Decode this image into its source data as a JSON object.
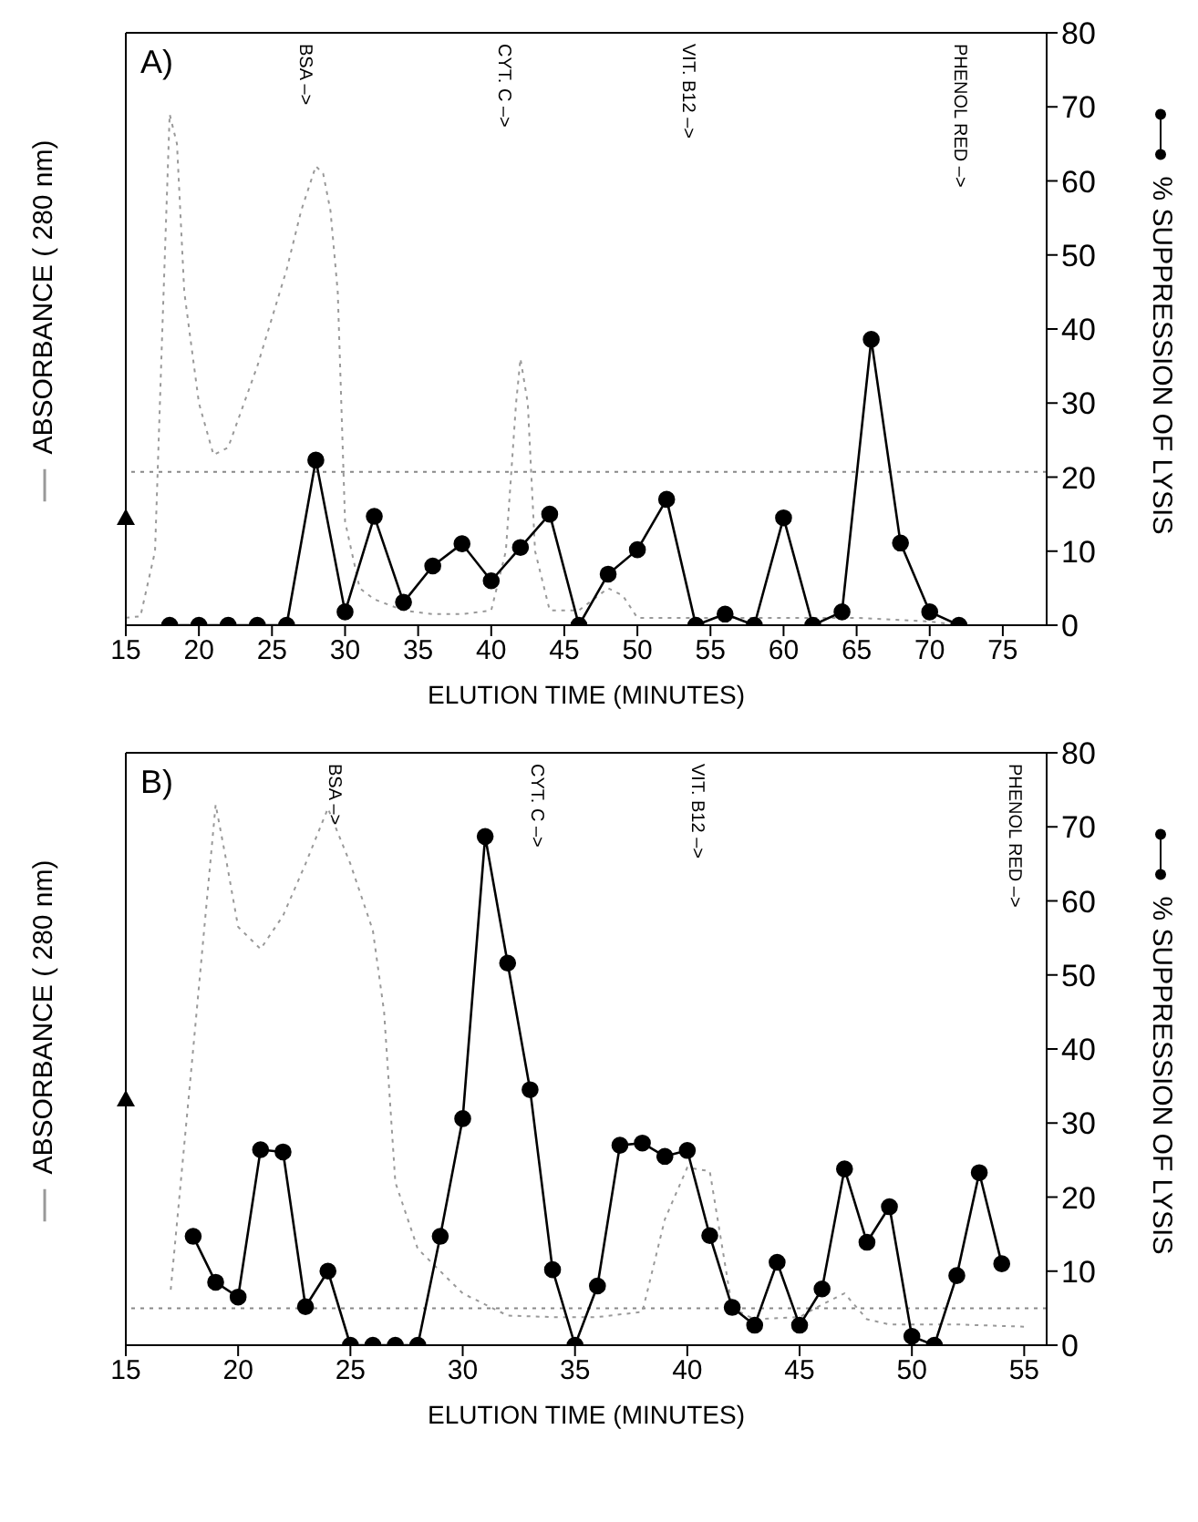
{
  "chart_data": [
    {
      "type": "line",
      "title": "A)",
      "xlabel": "ELUTION TIME (MINUTES)",
      "ylabel": "% SUPPRESSION OF LYSIS",
      "xlim": [
        15,
        78
      ],
      "xticks": [
        15,
        20,
        25,
        30,
        35,
        40,
        45,
        50,
        55,
        60,
        65,
        70,
        75
      ],
      "ylim": [
        0,
        80
      ],
      "yticks": [
        0,
        10,
        20,
        30,
        40,
        50,
        60,
        70,
        80
      ],
      "annotations": [
        "BSA –>",
        "CYT. C –>",
        "VIT. B12 –>",
        "PHENOL RED –>",
        "ABSORBANCE (  280 nm)"
      ],
      "ref_lines": [
        {
          "axis": "y",
          "value": 20.7,
          "color": "#888888",
          "line_style": "dotted"
        }
      ],
      "series": [
        {
          "type": "line",
          "color": "#999999",
          "marker": "none",
          "line_style": "dotted",
          "x": [
            15,
            16,
            17,
            17.5,
            18,
            18.5,
            19,
            20,
            21,
            22,
            24,
            26,
            27,
            28,
            28.5,
            29,
            29.5,
            30,
            31,
            32,
            34,
            36,
            38,
            40,
            41,
            41.7,
            42,
            42.5,
            43,
            44,
            46,
            48,
            49,
            50,
            55,
            60,
            65,
            70,
            72
          ],
          "values": [
            1,
            1.2,
            10,
            40,
            69,
            65,
            45,
            30,
            23,
            24,
            35,
            48,
            56,
            62,
            61,
            56,
            45,
            14,
            5,
            3.5,
            2,
            1.5,
            1.5,
            2,
            10,
            30,
            36,
            30,
            10,
            2,
            2,
            5,
            4,
            1,
            1,
            1,
            1,
            0.5,
            0
          ]
        },
        {
          "type": "line",
          "color": "#000000",
          "marker": "circle",
          "line_style": "solid",
          "x": [
            18,
            20,
            22,
            24,
            26,
            28,
            30,
            32,
            34,
            36,
            38,
            40,
            42,
            44,
            46,
            48,
            50,
            52,
            54,
            56,
            58,
            60,
            62,
            64,
            66,
            68,
            70,
            72
          ],
          "values": [
            0,
            0,
            0,
            0,
            0,
            22.3,
            1.8,
            14.7,
            3.1,
            8,
            11,
            6,
            10.5,
            15,
            0,
            6.9,
            10.2,
            17,
            0,
            1.5,
            0,
            14.5,
            0,
            1.8,
            38.6,
            11.1,
            1.8,
            0
          ]
        }
      ]
    },
    {
      "type": "line",
      "title": "B)",
      "xlabel": "ELUTION TIME (MINUTES)",
      "ylabel": "% SUPPRESSION OF LYSIS",
      "xlim": [
        15,
        56
      ],
      "xticks": [
        15,
        20,
        25,
        30,
        35,
        40,
        45,
        50,
        55
      ],
      "ylim": [
        0,
        80
      ],
      "yticks": [
        0,
        10,
        20,
        30,
        40,
        50,
        60,
        70,
        80
      ],
      "annotations": [
        "BSA –>",
        "CYT. C –>",
        "VIT. B12 –>",
        "PHENOL RED –>",
        "ABSORBANCE (  280 nm)"
      ],
      "ref_lines": [
        {
          "axis": "y",
          "value": 5,
          "color": "#888888",
          "line_style": "dotted"
        }
      ],
      "series": [
        {
          "type": "line",
          "color": "#999999",
          "marker": "none",
          "line_style": "dotted",
          "x": [
            17,
            18,
            19,
            19.5,
            20,
            21,
            22,
            23,
            24,
            25,
            26,
            26.5,
            27,
            28,
            29,
            30,
            31,
            32,
            34,
            36,
            38,
            39,
            40,
            41,
            42,
            43,
            45,
            46,
            47,
            48,
            49,
            50,
            52,
            55
          ],
          "values": [
            7.5,
            40,
            73,
            65,
            56.5,
            53.5,
            58,
            65,
            72.5,
            65,
            56,
            45,
            22,
            13,
            10,
            7,
            5.5,
            4,
            3.8,
            3.8,
            4.5,
            17,
            24,
            23.5,
            5,
            3.5,
            3.8,
            5.5,
            7,
            3.5,
            2.8,
            2.8,
            2.8,
            2.5
          ]
        },
        {
          "type": "line",
          "color": "#000000",
          "marker": "circle",
          "line_style": "solid",
          "x": [
            18,
            19,
            20,
            21,
            22,
            23,
            24,
            25,
            26,
            27,
            28,
            29,
            30,
            31,
            32,
            33,
            34,
            35,
            36,
            37,
            38,
            39,
            40,
            41,
            42,
            43,
            44,
            45,
            46,
            47,
            48,
            49,
            50,
            51,
            52,
            53,
            54
          ],
          "values": [
            14.7,
            8.5,
            6.5,
            26.4,
            26.1,
            5.2,
            10,
            0,
            0,
            0,
            0,
            14.7,
            30.6,
            68.7,
            51.6,
            34.5,
            10.2,
            0,
            8,
            27,
            27.3,
            25.5,
            26.3,
            14.8,
            5.1,
            2.7,
            11.2,
            2.7,
            7.6,
            23.8,
            13.9,
            18.7,
            1.2,
            0,
            9.4,
            23.3,
            11
          ]
        }
      ]
    }
  ]
}
